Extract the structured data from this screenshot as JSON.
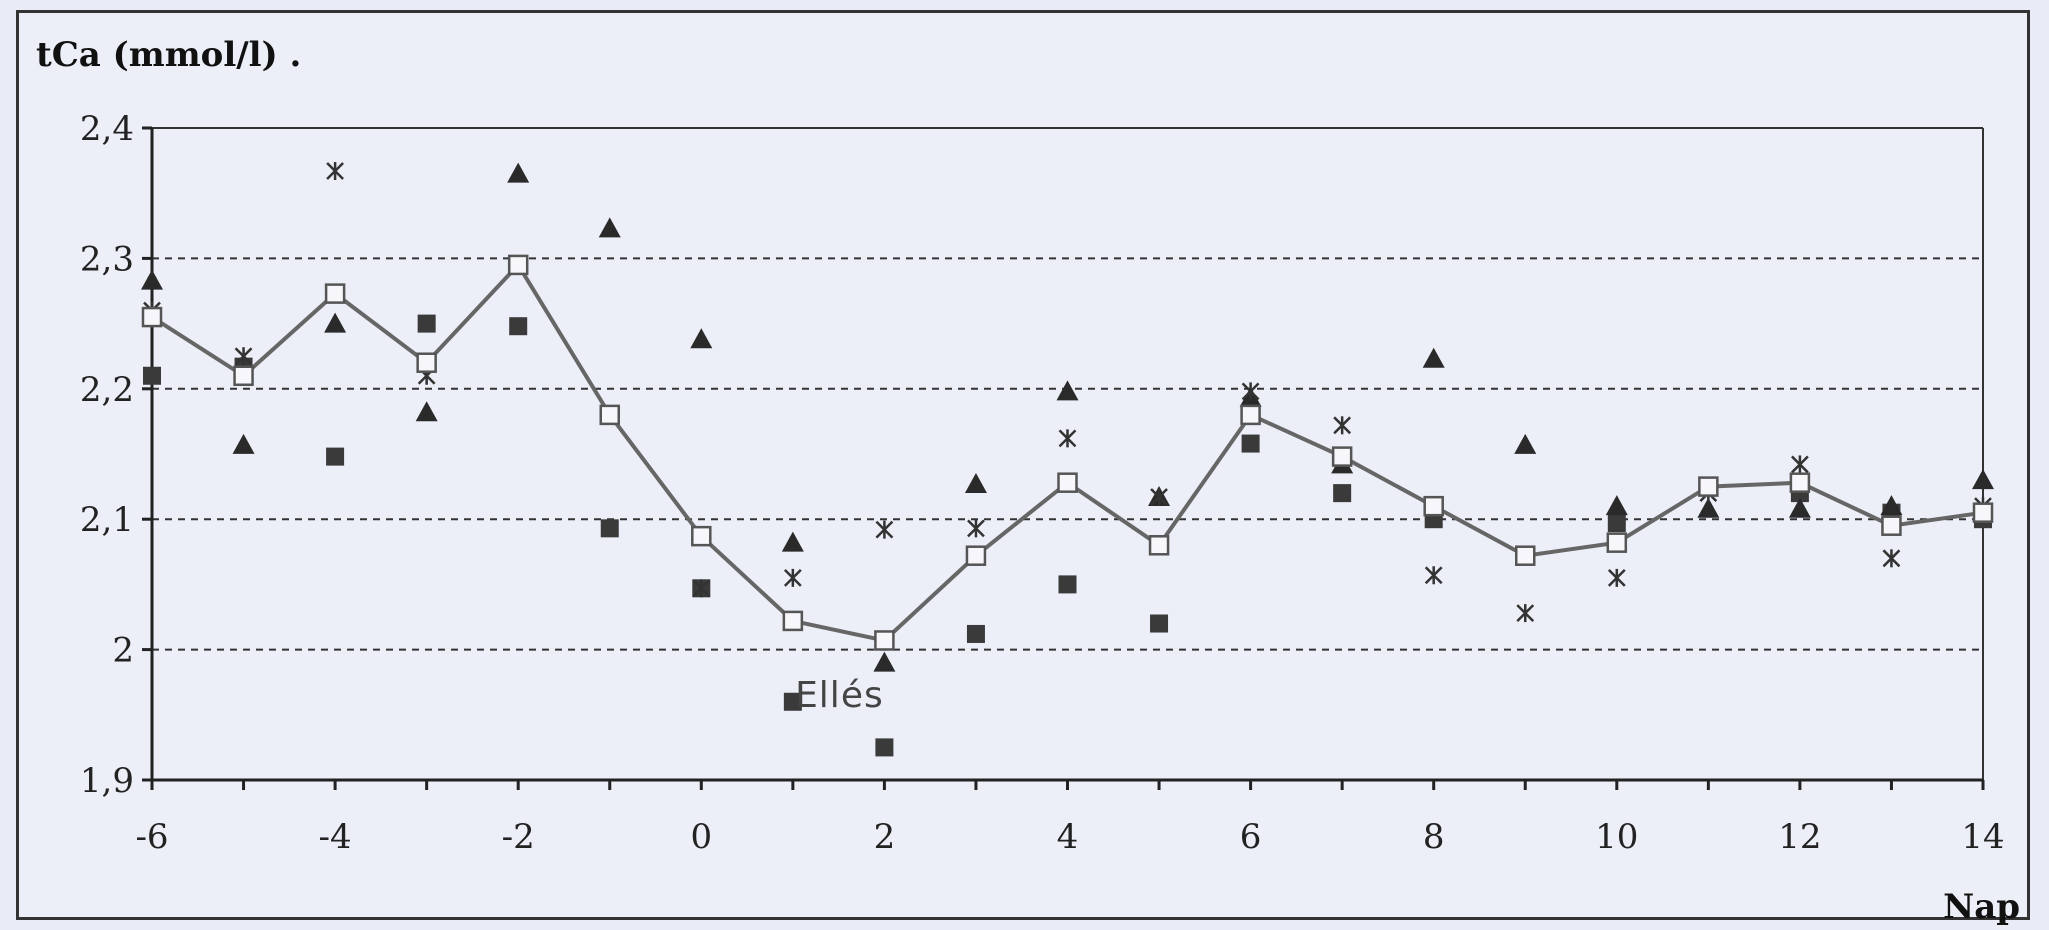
{
  "chart_data": {
    "type": "line",
    "ylabel": "tCa (mmol/l) .",
    "xlabel": "Nap",
    "annotation": "Ellés",
    "annotation_x": 2,
    "annotation_y": 1.965,
    "xlim": [
      -6,
      14
    ],
    "ylim": [
      1.9,
      2.4
    ],
    "x_ticks": [
      -6,
      -4,
      -2,
      0,
      2,
      4,
      6,
      8,
      10,
      12,
      14
    ],
    "x_tick_labels": [
      "-6",
      "-4",
      "-2",
      "0",
      "2",
      "4",
      "6",
      "8",
      "10",
      "12",
      "14"
    ],
    "y_ticks": [
      1.9,
      2.0,
      2.1,
      2.2,
      2.3,
      2.4
    ],
    "y_tick_labels": [
      "1,9",
      "2",
      "2,1",
      "2,2",
      "2,3",
      "2,4"
    ],
    "reference_lines": [
      2.0,
      2.1,
      2.2,
      2.3
    ],
    "grid": "dashed horizontal lines at 2, 2.1, 2.2, 2.3",
    "series": [
      {
        "marker": "open-square",
        "connected": true,
        "points": [
          [
            -6,
            2.255
          ],
          [
            -5,
            2.21
          ],
          [
            -4,
            2.273
          ],
          [
            -3,
            2.22
          ],
          [
            -2,
            2.295
          ],
          [
            -1,
            2.18
          ],
          [
            0,
            2.087
          ],
          [
            1,
            2.022
          ],
          [
            2,
            2.007
          ],
          [
            3,
            2.072
          ],
          [
            4,
            2.128
          ],
          [
            5,
            2.08
          ],
          [
            6,
            2.18
          ],
          [
            7,
            2.148
          ],
          [
            8,
            2.11
          ],
          [
            9,
            2.072
          ],
          [
            10,
            2.082
          ],
          [
            11,
            2.125
          ],
          [
            12,
            2.128
          ],
          [
            13,
            2.095
          ],
          [
            14,
            2.105
          ]
        ]
      },
      {
        "marker": "filled-triangle",
        "connected": false,
        "points": [
          [
            -6,
            2.283
          ],
          [
            -5,
            2.157
          ],
          [
            -4,
            2.25
          ],
          [
            -3,
            2.182
          ],
          [
            -2,
            2.365
          ],
          [
            -1,
            2.323
          ],
          [
            0,
            2.238
          ],
          [
            1,
            2.082
          ],
          [
            2,
            1.99
          ],
          [
            3,
            2.127
          ],
          [
            4,
            2.198
          ],
          [
            5,
            2.117
          ],
          [
            6,
            2.193
          ],
          [
            7,
            2.142
          ],
          [
            8,
            2.223
          ],
          [
            9,
            2.157
          ],
          [
            10,
            2.11
          ],
          [
            11,
            2.108
          ],
          [
            12,
            2.108
          ],
          [
            13,
            2.11
          ],
          [
            14,
            2.13
          ]
        ]
      },
      {
        "marker": "filled-square",
        "connected": false,
        "points": [
          [
            -6,
            2.21
          ],
          [
            -5,
            2.217
          ],
          [
            -4,
            2.148
          ],
          [
            -3,
            2.25
          ],
          [
            -2,
            2.248
          ],
          [
            -1,
            2.093
          ],
          [
            0,
            2.047
          ],
          [
            1,
            1.96
          ],
          [
            2,
            1.925
          ],
          [
            3,
            2.012
          ],
          [
            4,
            2.05
          ],
          [
            5,
            2.02
          ],
          [
            6,
            2.158
          ],
          [
            7,
            2.12
          ],
          [
            8,
            2.1
          ],
          [
            9,
            2.072
          ],
          [
            10,
            2.097
          ],
          [
            11,
            2.125
          ],
          [
            12,
            2.12
          ],
          [
            13,
            2.105
          ],
          [
            14,
            2.1
          ]
        ]
      },
      {
        "marker": "asterisk",
        "connected": false,
        "points": [
          [
            -6,
            2.26
          ],
          [
            -5,
            2.225
          ],
          [
            -4,
            2.367
          ],
          [
            -3,
            2.21
          ],
          [
            -2,
            2.295
          ],
          [
            -1,
            2.18
          ],
          [
            0,
            2.047
          ],
          [
            1,
            2.055
          ],
          [
            2,
            2.092
          ],
          [
            3,
            2.093
          ],
          [
            4,
            2.162
          ],
          [
            5,
            2.117
          ],
          [
            6,
            2.198
          ],
          [
            7,
            2.172
          ],
          [
            8,
            2.057
          ],
          [
            9,
            2.028
          ],
          [
            10,
            2.055
          ],
          [
            11,
            2.12
          ],
          [
            12,
            2.142
          ],
          [
            13,
            2.07
          ],
          [
            14,
            2.11
          ]
        ]
      }
    ]
  }
}
